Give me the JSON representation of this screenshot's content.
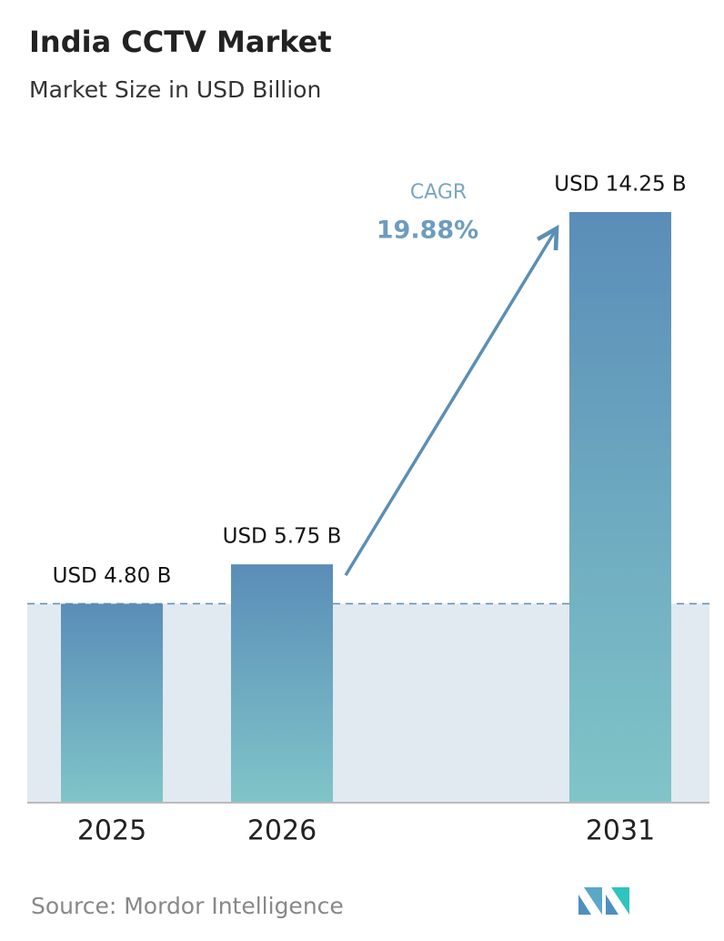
{
  "chart_data": {
    "type": "bar",
    "title": "India CCTV Market",
    "subtitle": "Market Size in USD Billion",
    "categories": [
      "2025",
      "2026",
      "2031"
    ],
    "values": [
      4.8,
      5.75,
      14.25
    ],
    "value_labels": [
      "USD 4.80 B",
      "USD 5.75 B",
      "USD 14.25 B"
    ],
    "cagr_label": "CAGR",
    "cagr": "19.88%",
    "source": "Source:  Mordor Intelligence"
  }
}
